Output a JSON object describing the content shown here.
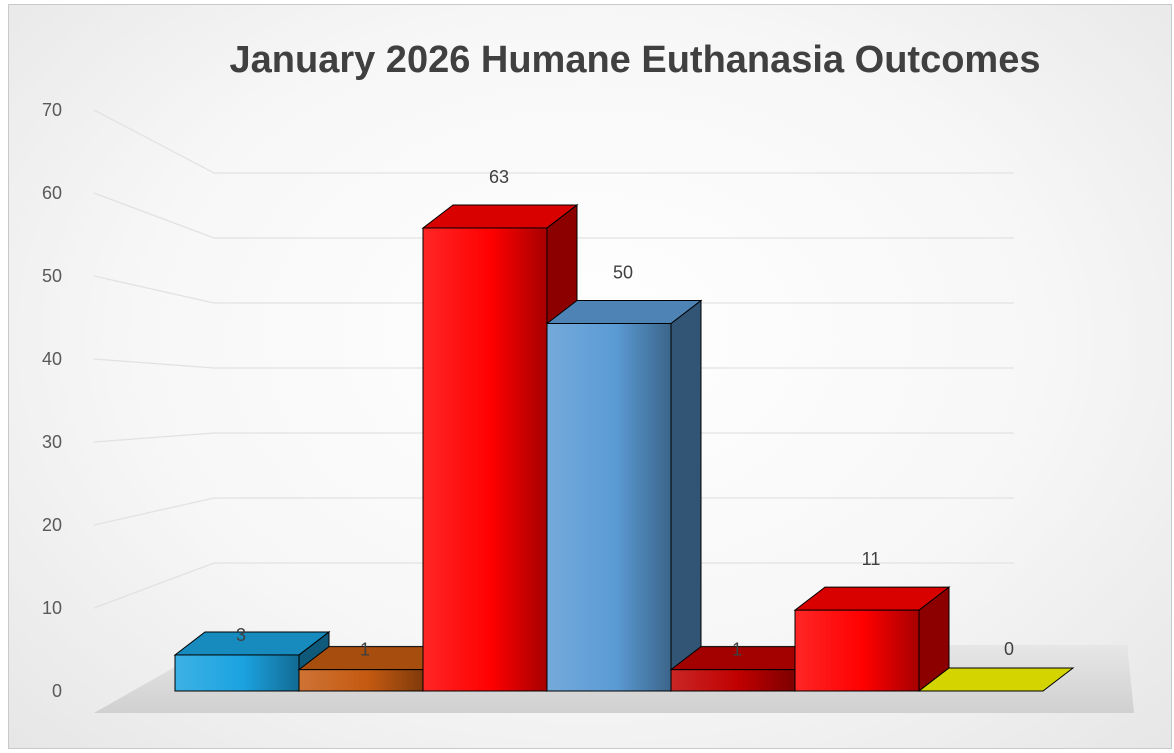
{
  "chart_data": {
    "type": "bar",
    "title": "January 2026 Humane Euthanasia Outcomes",
    "xlabel": "",
    "ylabel": "",
    "ylim": [
      0,
      70
    ],
    "yticks": [
      0,
      10,
      20,
      30,
      40,
      50,
      60,
      70
    ],
    "grid": true,
    "legend": "none",
    "style": "3d-columns",
    "values": [
      3,
      1,
      63,
      50,
      1,
      11,
      0
    ],
    "data_labels": [
      "3",
      "1",
      "63",
      "50",
      "1",
      "11",
      "0"
    ],
    "colors": [
      "#1BA3E0",
      "#C55A11",
      "#FF0000",
      "#5B9BD5",
      "#C00000",
      "#FF0000",
      "#D4D400"
    ]
  }
}
